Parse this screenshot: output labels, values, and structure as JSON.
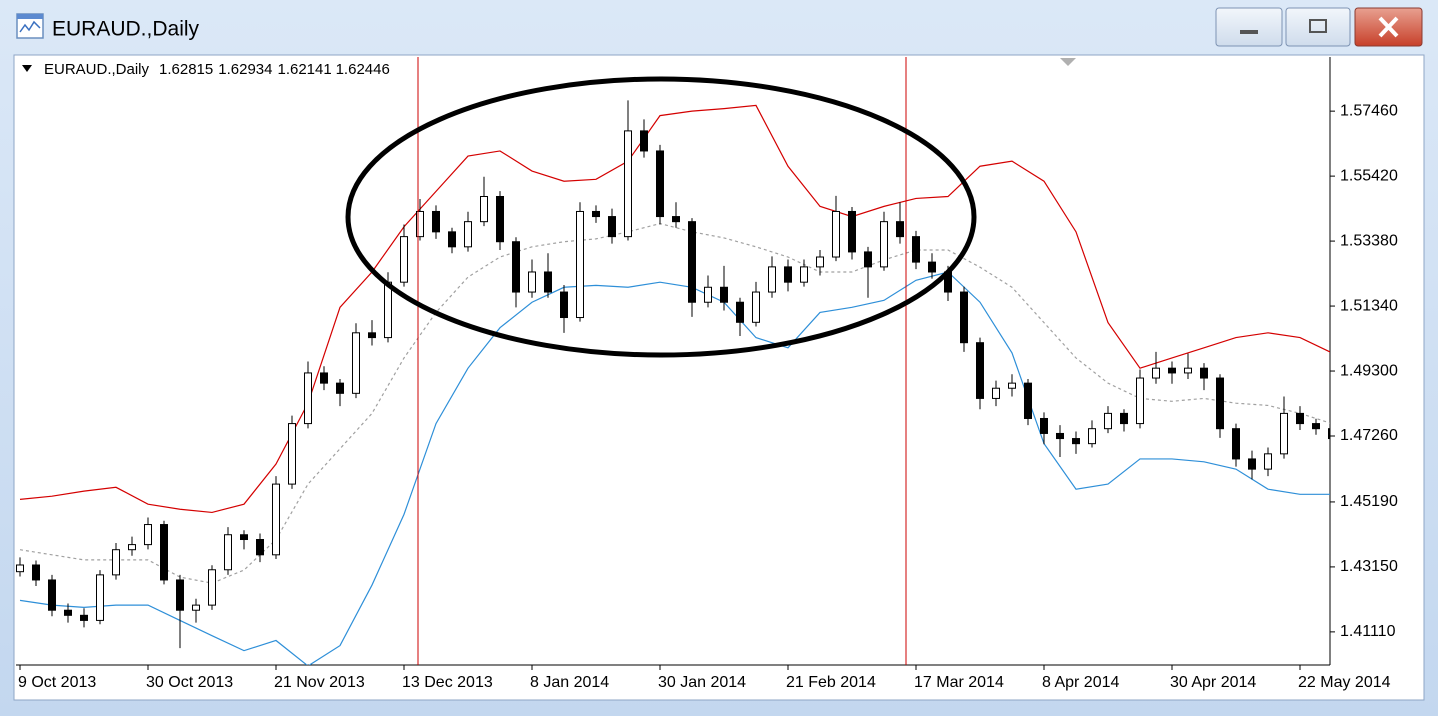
{
  "window": {
    "title": "EURAUD.,Daily"
  },
  "chart_data": {
    "type": "candlestick",
    "symbol": "EURAUD.,Daily",
    "quote": [
      1.62815,
      1.62934,
      1.62141,
      1.62446
    ],
    "ylim": [
      1.4007,
      1.5916
    ],
    "yticks": [
      {
        "value": 1.5746,
        "label": "1.57460"
      },
      {
        "value": 1.5542,
        "label": "1.55420"
      },
      {
        "value": 1.5338,
        "label": "1.53380"
      },
      {
        "value": 1.5134,
        "label": "1.51340"
      },
      {
        "value": 1.493,
        "label": "1.49300"
      },
      {
        "value": 1.4726,
        "label": "1.47260"
      },
      {
        "value": 1.4519,
        "label": "1.45190"
      },
      {
        "value": 1.4315,
        "label": "1.43150"
      },
      {
        "value": 1.4111,
        "label": "1.41110"
      }
    ],
    "categories": [
      "9 Oct 2013",
      null,
      null,
      null,
      null,
      null,
      null,
      null,
      "30 Oct 2013",
      null,
      null,
      null,
      null,
      null,
      null,
      null,
      "21 Nov 2013",
      null,
      null,
      null,
      null,
      null,
      null,
      null,
      "13 Dec 2013",
      null,
      null,
      null,
      null,
      null,
      null,
      null,
      "8 Jan 2014",
      null,
      null,
      null,
      null,
      null,
      null,
      null,
      "30 Jan 2014",
      null,
      null,
      null,
      null,
      null,
      null,
      null,
      "21 Feb 2014",
      null,
      null,
      null,
      null,
      null,
      null,
      null,
      "17 Mar 2014",
      null,
      null,
      null,
      null,
      null,
      null,
      null,
      "8 Apr 2014",
      null,
      null,
      null,
      null,
      null,
      null,
      null,
      "30 Apr 2014",
      null,
      null,
      null,
      null,
      null,
      null,
      null,
      "22 May 2014",
      null,
      null
    ],
    "open": [
      1.43,
      1.4321,
      1.4274,
      1.4179,
      1.4163,
      1.4147,
      1.429,
      1.4369,
      1.4385,
      1.4448,
      1.4274,
      1.4179,
      1.4195,
      1.4306,
      1.4416,
      1.4401,
      1.4353,
      1.4575,
      1.4765,
      1.4924,
      1.4892,
      1.486,
      1.505,
      1.5035,
      1.5209,
      1.5352,
      1.5431,
      1.5367,
      1.532,
      1.5399,
      1.5478,
      1.5336,
      1.5178,
      1.5241,
      1.5178,
      1.5098,
      1.5431,
      1.5415,
      1.5352,
      1.5684,
      1.5621,
      1.5415,
      1.5399,
      1.5146,
      1.5193,
      1.5146,
      1.5083,
      1.5178,
      1.5257,
      1.5209,
      1.5257,
      1.5288,
      1.5431,
      1.5304,
      1.5257,
      1.5399,
      1.5352,
      1.5272,
      1.5241,
      1.5178,
      1.5019,
      1.4844,
      1.4876,
      1.4892,
      1.4781,
      1.4734,
      1.4718,
      1.4702,
      1.4749,
      1.4797,
      1.4765,
      1.4908,
      1.4939,
      1.4924,
      1.4939,
      1.4908,
      1.4749,
      1.4654,
      1.4622,
      1.467,
      1.4797,
      1.4765,
      1.4749
    ],
    "high": [
      1.4345,
      1.4335,
      1.429,
      1.42,
      1.4185,
      1.4305,
      1.439,
      1.441,
      1.447,
      1.446,
      1.429,
      1.4215,
      1.432,
      1.444,
      1.443,
      1.442,
      1.46,
      1.479,
      1.496,
      1.4945,
      1.4905,
      1.508,
      1.509,
      1.524,
      1.539,
      1.547,
      1.545,
      1.538,
      1.543,
      1.554,
      1.5495,
      1.535,
      1.528,
      1.53,
      1.52,
      1.546,
      1.545,
      1.544,
      1.578,
      1.572,
      1.564,
      1.546,
      1.541,
      1.523,
      1.526,
      1.516,
      1.521,
      1.529,
      1.528,
      1.528,
      1.531,
      1.548,
      1.5445,
      1.532,
      1.543,
      1.546,
      1.537,
      1.53,
      1.526,
      1.5195,
      1.5035,
      1.49,
      1.492,
      1.4905,
      1.48,
      1.476,
      1.474,
      1.4775,
      1.482,
      1.481,
      1.4935,
      1.499,
      1.496,
      1.4985,
      1.4955,
      1.492,
      1.4765,
      1.468,
      1.469,
      1.485,
      1.482,
      1.478,
      1.4765
    ],
    "low": [
      1.4285,
      1.4255,
      1.416,
      1.414,
      1.4125,
      1.4135,
      1.4275,
      1.435,
      1.437,
      1.426,
      1.406,
      1.414,
      1.418,
      1.429,
      1.437,
      1.433,
      1.434,
      1.456,
      1.475,
      1.487,
      1.482,
      1.4845,
      1.501,
      1.502,
      1.5195,
      1.534,
      1.5345,
      1.53,
      1.5305,
      1.5385,
      1.531,
      1.513,
      1.516,
      1.516,
      1.505,
      1.5085,
      1.5395,
      1.533,
      1.534,
      1.56,
      1.539,
      1.538,
      1.51,
      1.513,
      1.512,
      1.504,
      1.507,
      1.516,
      1.518,
      1.5195,
      1.523,
      1.5275,
      1.528,
      1.516,
      1.5245,
      1.533,
      1.525,
      1.522,
      1.515,
      1.499,
      1.481,
      1.482,
      1.485,
      1.476,
      1.47,
      1.466,
      1.467,
      1.469,
      1.4735,
      1.474,
      1.475,
      1.489,
      1.489,
      1.4905,
      1.487,
      1.472,
      1.463,
      1.459,
      1.46,
      1.4655,
      1.4745,
      1.473,
      1.47
    ],
    "close": [
      1.4321,
      1.4274,
      1.4179,
      1.4163,
      1.4147,
      1.429,
      1.4369,
      1.4385,
      1.4448,
      1.4274,
      1.4179,
      1.4195,
      1.4306,
      1.4416,
      1.4401,
      1.4353,
      1.4575,
      1.4765,
      1.4924,
      1.4892,
      1.486,
      1.505,
      1.5035,
      1.5209,
      1.5352,
      1.5431,
      1.5367,
      1.532,
      1.5399,
      1.5478,
      1.5336,
      1.5178,
      1.5241,
      1.5178,
      1.5098,
      1.5431,
      1.5415,
      1.5352,
      1.5684,
      1.5621,
      1.5415,
      1.5399,
      1.5146,
      1.5193,
      1.5146,
      1.5083,
      1.5178,
      1.5257,
      1.5209,
      1.5257,
      1.5288,
      1.5431,
      1.5304,
      1.5257,
      1.5399,
      1.5352,
      1.5272,
      1.5241,
      1.5178,
      1.5019,
      1.4844,
      1.4876,
      1.4892,
      1.4781,
      1.4734,
      1.4718,
      1.4702,
      1.4749,
      1.4797,
      1.4765,
      1.4908,
      1.4939,
      1.4924,
      1.4939,
      1.4908,
      1.4749,
      1.4654,
      1.4622,
      1.467,
      1.4797,
      1.4765,
      1.4749,
      1.4718
    ],
    "bands": [
      {
        "color": "#d40000",
        "x": [
          0,
          2,
          4,
          6,
          8,
          10,
          12,
          14,
          16,
          18,
          20,
          22,
          24,
          26,
          28,
          30,
          32,
          34,
          36,
          38,
          40,
          42,
          44,
          46,
          48,
          50,
          52,
          54,
          56,
          58,
          60,
          62,
          64,
          66,
          68,
          70,
          72,
          74,
          76,
          78,
          80,
          82
        ],
        "values": [
          1.4527,
          1.4537,
          1.4553,
          1.4565,
          1.4512,
          1.4496,
          1.4486,
          1.4512,
          1.4638,
          1.4829,
          1.513,
          1.5241,
          1.5383,
          1.5494,
          1.5605,
          1.5621,
          1.5558,
          1.5526,
          1.5532,
          1.5589,
          1.5732,
          1.5746,
          1.5754,
          1.5764,
          1.5573,
          1.5447,
          1.5415,
          1.5447,
          1.5472,
          1.5478,
          1.5573,
          1.5589,
          1.5526,
          1.5367,
          1.5082,
          1.4939,
          1.4971,
          1.5003,
          1.5035,
          1.505,
          1.5035,
          1.4987
        ]
      },
      {
        "color": "#a0a0a0",
        "dashed": true,
        "x": [
          0,
          2,
          4,
          6,
          8,
          10,
          12,
          14,
          16,
          18,
          20,
          22,
          24,
          26,
          28,
          30,
          32,
          34,
          36,
          38,
          40,
          42,
          44,
          46,
          48,
          50,
          52,
          54,
          56,
          58,
          60,
          62,
          64,
          66,
          68,
          70,
          72,
          74,
          76,
          78,
          80,
          82
        ],
        "values": [
          1.4369,
          1.4353,
          1.4337,
          1.4337,
          1.4337,
          1.4283,
          1.4264,
          1.4305,
          1.4401,
          1.4575,
          1.4686,
          1.4797,
          1.4971,
          1.5114,
          1.5225,
          1.5288,
          1.532,
          1.5336,
          1.5345,
          1.5367,
          1.5393,
          1.5367,
          1.5348,
          1.532,
          1.5288,
          1.5241,
          1.5241,
          1.5279,
          1.531,
          1.531,
          1.5256,
          1.5193,
          1.5082,
          1.4971,
          1.4892,
          1.4844,
          1.4835,
          1.4844,
          1.4829,
          1.4822,
          1.4797,
          1.4765
        ]
      },
      {
        "color": "#2e8fd8",
        "x": [
          0,
          2,
          4,
          6,
          8,
          10,
          12,
          14,
          16,
          18,
          20,
          22,
          24,
          26,
          28,
          30,
          32,
          34,
          36,
          38,
          40,
          42,
          44,
          46,
          48,
          50,
          52,
          54,
          56,
          58,
          60,
          62,
          64,
          66,
          68,
          70,
          72,
          74,
          76,
          78,
          80,
          82
        ],
        "values": [
          1.421,
          1.4195,
          1.4188,
          1.4195,
          1.4195,
          1.4147,
          1.4099,
          1.4052,
          1.4084,
          1.4004,
          1.4068,
          1.4258,
          1.448,
          1.4765,
          1.4939,
          1.5066,
          1.5146,
          1.5193,
          1.5199,
          1.5193,
          1.5209,
          1.5193,
          1.5146,
          1.5035,
          1.5003,
          1.5114,
          1.513,
          1.5152,
          1.5215,
          1.5241,
          1.5146,
          1.4987,
          1.4702,
          1.4559,
          1.4575,
          1.4654,
          1.4654,
          1.4645,
          1.4622,
          1.4559,
          1.4543,
          1.4543
        ]
      }
    ]
  }
}
